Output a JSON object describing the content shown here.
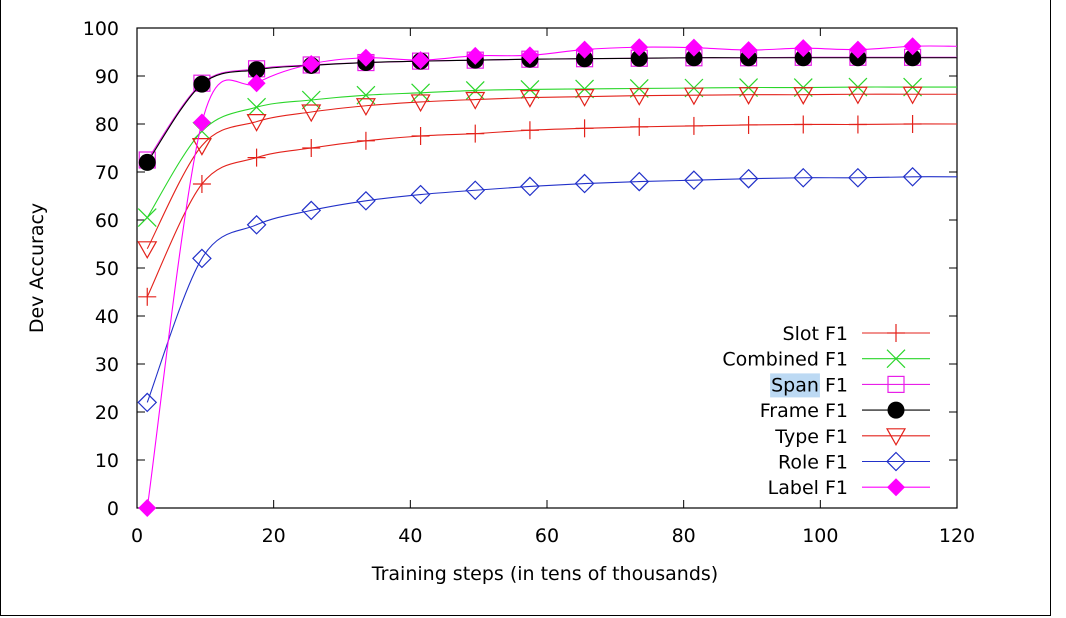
{
  "chart_data": {
    "type": "line",
    "title": "",
    "xlabel": "Training steps (in tens of thousands)",
    "ylabel": "Dev Accuracy",
    "xlim": [
      0,
      120
    ],
    "ylim": [
      0,
      100
    ],
    "xticks": [
      0,
      20,
      40,
      60,
      80,
      100,
      120
    ],
    "yticks": [
      0,
      10,
      20,
      30,
      40,
      50,
      60,
      70,
      80,
      90,
      100
    ],
    "grid": false,
    "legend_position": "bottom-right",
    "highlighted_legend_word": "Span",
    "series": [
      {
        "name": "Slot F1",
        "color": "#e3221b",
        "marker": "plus",
        "x": [
          1.5,
          9.5,
          17.5,
          25.5,
          33.5,
          41.5,
          49.5,
          57.5,
          65.5,
          73.5,
          81.5,
          89.5,
          97.5,
          105.5,
          113.5
        ],
        "y": [
          44,
          67.5,
          73,
          75,
          76.5,
          77.5,
          78,
          78.7,
          79.1,
          79.4,
          79.6,
          79.8,
          79.9,
          79.9,
          80
        ]
      },
      {
        "name": "Combined F1",
        "color": "#2ad62a",
        "marker": "x",
        "x": [
          1.5,
          9.5,
          17.5,
          25.5,
          33.5,
          41.5,
          49.5,
          57.5,
          65.5,
          73.5,
          81.5,
          89.5,
          97.5,
          105.5,
          113.5
        ],
        "y": [
          60.5,
          78.5,
          83.5,
          85,
          86,
          86.5,
          87,
          87.2,
          87.3,
          87.4,
          87.5,
          87.6,
          87.6,
          87.7,
          87.7
        ]
      },
      {
        "name": "Span F1",
        "color": "#e81fe8",
        "marker": "square-open",
        "x": [
          1.5,
          9.5,
          17.5,
          25.5,
          33.5,
          41.5,
          49.5,
          57.5,
          65.5,
          73.5,
          81.5,
          89.5,
          97.5,
          105.5,
          113.5
        ],
        "y": [
          72.5,
          88.5,
          91.5,
          92.3,
          92.8,
          93.1,
          93.3,
          93.5,
          93.6,
          93.7,
          93.8,
          93.8,
          93.9,
          93.9,
          93.9
        ]
      },
      {
        "name": "Frame F1",
        "color": "#000000",
        "marker": "circle-filled",
        "x": [
          1.5,
          9.5,
          17.5,
          25.5,
          33.5,
          41.5,
          49.5,
          57.5,
          65.5,
          73.5,
          81.5,
          89.5,
          97.5,
          105.5,
          113.5
        ],
        "y": [
          72,
          88.3,
          91.3,
          92.2,
          92.8,
          93.1,
          93.3,
          93.5,
          93.6,
          93.7,
          93.8,
          93.8,
          93.8,
          93.8,
          93.8
        ]
      },
      {
        "name": "Type F1",
        "color": "#e3221b",
        "marker": "triangle-down-open",
        "x": [
          1.5,
          9.5,
          17.5,
          25.5,
          33.5,
          41.5,
          49.5,
          57.5,
          65.5,
          73.5,
          81.5,
          89.5,
          97.5,
          105.5,
          113.5
        ],
        "y": [
          54,
          75.5,
          80.5,
          82.5,
          83.8,
          84.6,
          85.1,
          85.5,
          85.7,
          85.9,
          86,
          86.1,
          86.1,
          86.2,
          86.2
        ]
      },
      {
        "name": "Role F1",
        "color": "#2231c9",
        "marker": "diamond-open",
        "x": [
          1.5,
          9.5,
          17.5,
          25.5,
          33.5,
          41.5,
          49.5,
          57.5,
          65.5,
          73.5,
          81.5,
          89.5,
          97.5,
          105.5,
          113.5
        ],
        "y": [
          22,
          52,
          59,
          62,
          64,
          65.3,
          66.2,
          67,
          67.6,
          68,
          68.3,
          68.6,
          68.8,
          68.8,
          69
        ]
      },
      {
        "name": "Label F1",
        "color": "#ff00ff",
        "marker": "diamond-filled",
        "x": [
          1.5,
          9.5,
          17.5,
          25.5,
          33.5,
          41.5,
          49.5,
          57.5,
          65.5,
          73.5,
          81.5,
          89.5,
          97.5,
          105.5,
          113.5
        ],
        "y": [
          0,
          80.3,
          88.5,
          92.5,
          93.8,
          93.3,
          94.2,
          94.3,
          95.5,
          96,
          95.9,
          95.4,
          95.8,
          95.5,
          96.2
        ]
      }
    ]
  }
}
